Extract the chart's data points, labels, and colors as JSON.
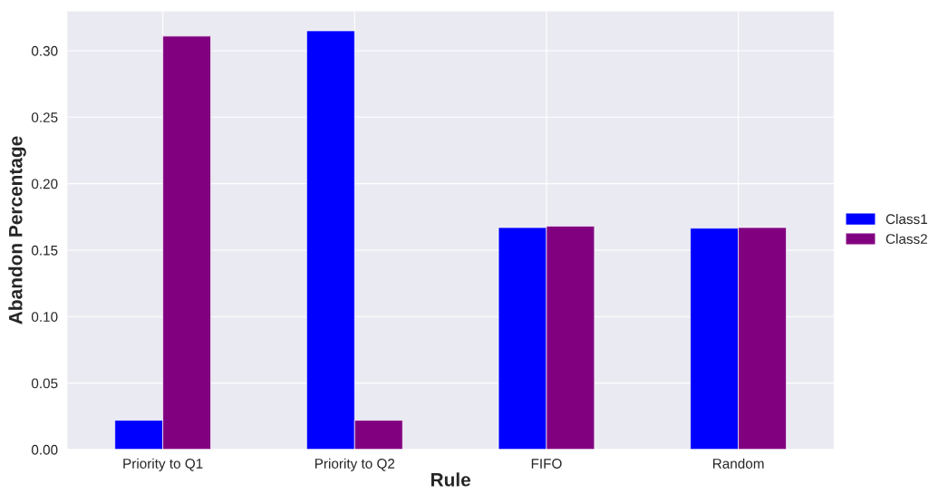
{
  "chart_data": {
    "type": "bar",
    "xlabel": "Rule",
    "ylabel": "Abandon Percentage",
    "categories": [
      "Priority to Q1",
      "Priority to Q2",
      "FIFO",
      "Random"
    ],
    "series": [
      {
        "name": "Class1",
        "color": "#0000ff",
        "values": [
          0.022,
          0.315,
          0.167,
          0.1665
        ]
      },
      {
        "name": "Class2",
        "color": "#800080",
        "values": [
          0.311,
          0.022,
          0.168,
          0.167
        ]
      }
    ],
    "ylim": [
      0,
      0.33
    ],
    "yticks": [
      {
        "value": 0,
        "label": "0.00"
      },
      {
        "value": 0.05,
        "label": "0.05"
      },
      {
        "value": 0.1,
        "label": "0.10"
      },
      {
        "value": 0.15,
        "label": "0.15"
      },
      {
        "value": 0.2,
        "label": "0.20"
      },
      {
        "value": 0.25,
        "label": "0.25"
      },
      {
        "value": 0.3,
        "label": "0.30"
      }
    ],
    "grid": true,
    "legend": "right"
  }
}
